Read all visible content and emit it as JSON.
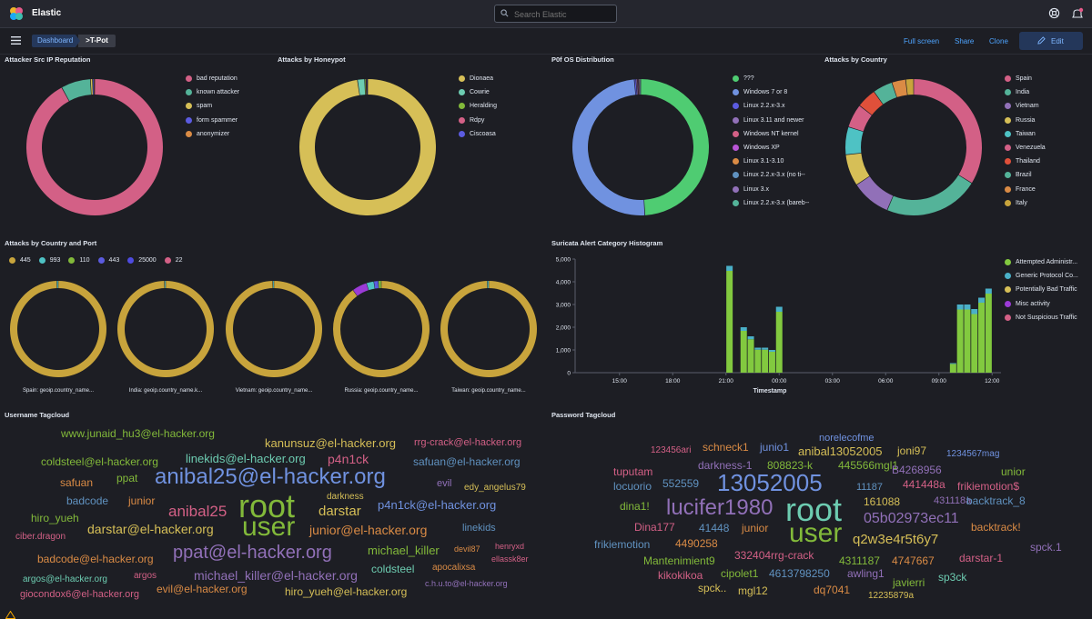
{
  "app": {
    "title": "Elastic"
  },
  "search": {
    "placeholder": "Search Elastic"
  },
  "breadcrumbs": [
    "Dashboard",
    ">T-Pot"
  ],
  "actions": {
    "full_screen": "Full screen",
    "share": "Share",
    "clone": "Clone",
    "edit": "Edit"
  },
  "icons": [
    "elastic-logo-icon",
    "search-icon",
    "help-icon",
    "news-icon",
    "menu-icon",
    "pencil-icon"
  ],
  "colors": {
    "pink": "#d36086",
    "green": "#54b399",
    "yellow": "#d6bf57",
    "purple": "#9170b8",
    "orange": "#da8b45",
    "mustard": "#c8a43c",
    "teal": "#6dccb1",
    "lime": "#82b93a",
    "indigo": "#5b5be0",
    "blue": "#6092c0",
    "lgreen": "#4fcc72",
    "lblue": "#7092e0"
  },
  "panels": {
    "reputation": {
      "title": "Attacker Src IP Reputation",
      "legend": [
        "bad reputation",
        "known attacker",
        "spam",
        "form spammer",
        "anonymizer"
      ]
    },
    "honeypot": {
      "title": "Attacks by Honeypot",
      "legend": [
        "Dionaea",
        "Cowrie",
        "Heralding",
        "Rdpy",
        "Ciscoasa"
      ]
    },
    "p0f": {
      "title": "P0f OS Distribution",
      "legend": [
        "???",
        "Windows 7 or 8",
        "Linux 2.2.x-3.x",
        "Linux 3.11 and newer",
        "Windows NT kernel",
        "Windows XP",
        "Linux 3.1-3.10",
        "Linux 2.2.x-3.x (no ti--",
        "Linux 3.x",
        "Linux 2.2.x-3.x (bareb--"
      ]
    },
    "country": {
      "title": "Attacks by Country",
      "legend": [
        "Spain",
        "India",
        "Vietnam",
        "Russia",
        "Taiwan",
        "Venezuela",
        "Thailand",
        "Brazil",
        "France",
        "Italy"
      ]
    },
    "country_port": {
      "title": "Attacks by Country and Port",
      "legend": [
        "445",
        "993",
        "110",
        "443",
        "25000",
        "22"
      ],
      "labels": [
        "Spain: geoip.country_name...",
        "India: geoip.country_name.k...",
        "Vietnam: geoip.country_name...",
        "Russia: geoip.country_name...",
        "Taiwan: geoip.country_name..."
      ]
    },
    "suricata": {
      "title": "Suricata Alert Category Histogram",
      "legend": [
        "Attempted Administr...",
        "Generic Protocol Co...",
        "Potentially Bad Traffic",
        "Misc activity",
        "Not Suspicious Traffic"
      ],
      "y_ticks": [
        "5,000",
        "4,000",
        "3,000",
        "2,000",
        "1,000",
        "0"
      ],
      "x_ticks": [
        "15:00",
        "18:00",
        "21:00",
        "00:00",
        "03:00",
        "06:00",
        "09:00",
        "12:00"
      ],
      "x_label": "Timestamp"
    },
    "username_cloud": {
      "title": "Username Tagcloud"
    },
    "password_cloud": {
      "title": "Password Tagcloud"
    }
  },
  "chart_data": [
    {
      "type": "pie",
      "title": "Attacker Src IP Reputation",
      "labels": [
        "bad reputation",
        "known attacker",
        "spam",
        "form spammer",
        "anonymizer"
      ],
      "values": [
        92,
        7,
        0.5,
        0.3,
        0.2
      ],
      "colors": [
        "#d36086",
        "#54b399",
        "#d6bf57",
        "#5b5be0",
        "#da8b45"
      ]
    },
    {
      "type": "pie",
      "title": "Attacks by Honeypot",
      "labels": [
        "Dionaea",
        "Cowrie",
        "Heralding",
        "Rdpy",
        "Ciscoasa"
      ],
      "values": [
        97.6,
        1.7,
        0.3,
        0.2,
        0.2
      ],
      "colors": [
        "#d6bf57",
        "#6dccb1",
        "#82b93a",
        "#d36086",
        "#5b5be0"
      ]
    },
    {
      "type": "pie",
      "title": "P0f OS Distribution",
      "labels": [
        "???",
        "Windows 7 or 8",
        "Linux 2.2.x-3.x",
        "Linux 3.11 and newer",
        "Windows NT kernel",
        "Windows XP",
        "Linux 3.1-3.10",
        "Linux 2.2.x-3.x (no ti--",
        "Linux 3.x",
        "Linux 2.2.x-3.x (bareb--"
      ],
      "values": [
        49,
        49.5,
        0.4,
        0.3,
        0.2,
        0.2,
        0.1,
        0.1,
        0.1,
        0.1
      ],
      "colors": [
        "#4fcc72",
        "#7092e0",
        "#5b5be0",
        "#9170b8",
        "#d36086",
        "#b855d6",
        "#da8b45",
        "#6092c0",
        "#9170b8",
        "#54b399"
      ]
    },
    {
      "type": "pie",
      "title": "Attacks by Country",
      "labels": [
        "Spain",
        "India",
        "Vietnam",
        "Russia",
        "Taiwan",
        "Venezuela",
        "Thailand",
        "Brazil",
        "France",
        "Italy"
      ],
      "values": [
        36,
        24,
        10,
        8,
        7,
        6,
        5,
        5,
        3.5,
        2
      ],
      "colors": [
        "#d36086",
        "#54b399",
        "#9170b8",
        "#d6bf57",
        "#4ec2c4",
        "#d36086",
        "#e0503a",
        "#54b399",
        "#da8b45",
        "#c8a43c"
      ]
    },
    {
      "type": "pie",
      "title": "Attacks by Country and Port",
      "series": [
        {
          "name": "Spain: geoip.country_name...",
          "values": [
            99.5,
            0.5
          ]
        },
        {
          "name": "India: geoip.country_name.k...",
          "values": [
            99.6,
            0.4
          ]
        },
        {
          "name": "Vietnam: geoip.country_name...",
          "values": [
            99.6,
            0.4
          ]
        },
        {
          "name": "Russia: geoip.country_name...",
          "values": [
            90,
            5,
            2.5,
            1.5,
            1
          ]
        },
        {
          "name": "Taiwan: geoip.country_name...",
          "values": [
            99.5,
            0.5
          ]
        }
      ],
      "series_colors": [
        [
          "#c8a43c",
          "#4ec2c4"
        ],
        [
          "#c8a43c",
          "#4ec2c4"
        ],
        [
          "#c8a43c",
          "#4ec2c4"
        ],
        [
          "#c8a43c",
          "#9b3bd6",
          "#4ec2c4",
          "#5b5be0",
          "#82b93a"
        ],
        [
          "#c8a43c",
          "#4ec2c4"
        ]
      ]
    },
    {
      "type": "bar",
      "title": "Suricata Alert Category Histogram",
      "xlabel": "Timestamp",
      "ylabel": "",
      "ylim": [
        0,
        5000
      ],
      "x_range_hours": [
        12.5,
        36.5
      ],
      "bars": [
        {
          "t": 21.2,
          "total": 4700
        },
        {
          "t": 22.0,
          "total": 2000
        },
        {
          "t": 22.4,
          "total": 1600
        },
        {
          "t": 22.8,
          "total": 1100
        },
        {
          "t": 23.2,
          "total": 1100
        },
        {
          "t": 23.6,
          "total": 1000
        },
        {
          "t": 24.0,
          "total": 2900
        },
        {
          "t": 33.8,
          "total": 420
        },
        {
          "t": 34.2,
          "total": 3000
        },
        {
          "t": 34.6,
          "total": 3000
        },
        {
          "t": 35.0,
          "total": 2800
        },
        {
          "t": 35.4,
          "total": 3300
        },
        {
          "t": 35.8,
          "total": 3700
        }
      ],
      "legend": [
        "Attempted Administr...",
        "Generic Protocol Co...",
        "Potentially Bad Traffic",
        "Misc activity",
        "Not Suspicious Traffic"
      ],
      "colors": [
        "#82c93f",
        "#4ab0c8",
        "#d6bf57",
        "#9b3bd6",
        "#d36086"
      ]
    }
  ],
  "username_cloud": [
    {
      "t": "www.junaid_hu3@el-hacker.org",
      "c": "#82b93a",
      "s": 12
    },
    {
      "t": "kanunsuz@el-hacker.org",
      "c": "#d6bf57",
      "s": 13
    },
    {
      "t": "rrg-crack@el-hacker.org",
      "c": "#d36086",
      "s": 11
    },
    {
      "t": "coldsteel@el-hacker.org",
      "c": "#82b93a",
      "s": 12
    },
    {
      "t": "linekids@el-hacker.org",
      "c": "#6dccb1",
      "s": 13
    },
    {
      "t": "p4n1ck",
      "c": "#d36086",
      "s": 14
    },
    {
      "t": "safuan@el-hacker.org",
      "c": "#6092c0",
      "s": 12
    },
    {
      "t": "safuan",
      "c": "#da8b45",
      "s": 12
    },
    {
      "t": "ppat",
      "c": "#82b93a",
      "s": 12
    },
    {
      "t": "anibal25@el-hacker.org",
      "c": "#7092e0",
      "s": 24
    },
    {
      "t": "evil",
      "c": "#9170b8",
      "s": 11
    },
    {
      "t": "edy_angelus79",
      "c": "#d6bf57",
      "s": 10
    },
    {
      "t": "badcode",
      "c": "#6092c0",
      "s": 12
    },
    {
      "t": "junior",
      "c": "#da8b45",
      "s": 12
    },
    {
      "t": "darkness",
      "c": "#d6bf57",
      "s": 10
    },
    {
      "t": "p4n1ck@el-hacker.org",
      "c": "#7092e0",
      "s": 13
    },
    {
      "t": "anibal25",
      "c": "#d36086",
      "s": 17
    },
    {
      "t": "root",
      "c": "#82b93a",
      "s": 36
    },
    {
      "t": "darstar",
      "c": "#d6bf57",
      "s": 15
    },
    {
      "t": "hiro_yueh",
      "c": "#82b93a",
      "s": 12
    },
    {
      "t": "darstar@el-hacker.org",
      "c": "#d6bf57",
      "s": 14
    },
    {
      "t": "user",
      "c": "#82b93a",
      "s": 30
    },
    {
      "t": "junior@el-hacker.org",
      "c": "#da8b45",
      "s": 14
    },
    {
      "t": "linekids",
      "c": "#6092c0",
      "s": 11
    },
    {
      "t": "ciber.dragon",
      "c": "#d36086",
      "s": 10
    },
    {
      "t": "ppat@el-hacker.org",
      "c": "#9170b8",
      "s": 20
    },
    {
      "t": "michael_killer",
      "c": "#82b93a",
      "s": 13
    },
    {
      "t": "devil87",
      "c": "#da8b45",
      "s": 9
    },
    {
      "t": "henryxd",
      "c": "#d36086",
      "s": 9
    },
    {
      "t": "badcode@el-hacker.org",
      "c": "#da8b45",
      "s": 12
    },
    {
      "t": "ellassk8er",
      "c": "#d36086",
      "s": 9
    },
    {
      "t": "coldsteel",
      "c": "#6dccb1",
      "s": 12
    },
    {
      "t": "argos@el-hacker.org",
      "c": "#6dccb1",
      "s": 10
    },
    {
      "t": "argos",
      "c": "#d36086",
      "s": 10
    },
    {
      "t": "michael_killer@el-hacker.org",
      "c": "#9170b8",
      "s": 14
    },
    {
      "t": "apocalixsa",
      "c": "#da8b45",
      "s": 10
    },
    {
      "t": "evil@el-hacker.org",
      "c": "#da8b45",
      "s": 12
    },
    {
      "t": "c.h.u.to@el-hacker.org",
      "c": "#9170b8",
      "s": 9
    },
    {
      "t": "giocondox6@el-hacker.org",
      "c": "#d36086",
      "s": 11
    },
    {
      "t": "hiro_yueh@el-hacker.org",
      "c": "#d6bf57",
      "s": 12
    }
  ],
  "password_cloud": [
    {
      "t": "norelecofme",
      "c": "#7092e0",
      "s": 11
    },
    {
      "t": "123456ari",
      "c": "#d36086",
      "s": 10
    },
    {
      "t": "schneck1",
      "c": "#da8b45",
      "s": 12
    },
    {
      "t": "junio1",
      "c": "#7092e0",
      "s": 12
    },
    {
      "t": "anibal13052005",
      "c": "#d6bf57",
      "s": 13
    },
    {
      "t": "joni97",
      "c": "#d6bf57",
      "s": 12
    },
    {
      "t": "1234567mag",
      "c": "#7092e0",
      "s": 10
    },
    {
      "t": "tuputam",
      "c": "#d36086",
      "s": 12
    },
    {
      "t": "darkness-1",
      "c": "#9170b8",
      "s": 12
    },
    {
      "t": "808823-k",
      "c": "#82b93a",
      "s": 12
    },
    {
      "t": "445566mgl1",
      "c": "#82b93a",
      "s": 12
    },
    {
      "t": "unior",
      "c": "#82b93a",
      "s": 12
    },
    {
      "t": "B4268956",
      "c": "#9170b8",
      "s": 12
    },
    {
      "t": "locuorio",
      "c": "#6092c0",
      "s": 12
    },
    {
      "t": "552559",
      "c": "#6092c0",
      "s": 12
    },
    {
      "t": "13052005",
      "c": "#7092e0",
      "s": 26
    },
    {
      "t": "11187",
      "c": "#6092c0",
      "s": 11
    },
    {
      "t": "441448a",
      "c": "#d36086",
      "s": 12
    },
    {
      "t": "frikiemotion$",
      "c": "#d36086",
      "s": 12
    },
    {
      "t": "dina1!",
      "c": "#82b93a",
      "s": 12
    },
    {
      "t": "lucifer1980",
      "c": "#9170b8",
      "s": 24
    },
    {
      "t": "root",
      "c": "#6dccb1",
      "s": 36
    },
    {
      "t": "161088",
      "c": "#d6bf57",
      "s": 12
    },
    {
      "t": "431118a",
      "c": "#9170b8",
      "s": 11
    },
    {
      "t": "backtrack_8",
      "c": "#6092c0",
      "s": 12
    },
    {
      "t": "Dina177",
      "c": "#d36086",
      "s": 12
    },
    {
      "t": "41448",
      "c": "#6092c0",
      "s": 12
    },
    {
      "t": "junior",
      "c": "#da8b45",
      "s": 12
    },
    {
      "t": "user",
      "c": "#82b93a",
      "s": 30
    },
    {
      "t": "05b02973ec11",
      "c": "#9170b8",
      "s": 16
    },
    {
      "t": "backtrack!",
      "c": "#da8b45",
      "s": 12
    },
    {
      "t": "frikiemotion",
      "c": "#6092c0",
      "s": 12
    },
    {
      "t": "4490258",
      "c": "#da8b45",
      "s": 12
    },
    {
      "t": "q2w3e4r5t6y7",
      "c": "#d6bf57",
      "s": 15
    },
    {
      "t": "spck.1",
      "c": "#9170b8",
      "s": 12
    },
    {
      "t": "332404rrg-crack",
      "c": "#d36086",
      "s": 12
    },
    {
      "t": "Mantenimient9",
      "c": "#82b93a",
      "s": 12
    },
    {
      "t": "4311187",
      "c": "#82b93a",
      "s": 12
    },
    {
      "t": "4747667",
      "c": "#da8b45",
      "s": 12
    },
    {
      "t": "darstar-1",
      "c": "#d36086",
      "s": 12
    },
    {
      "t": "kikokikoa",
      "c": "#d36086",
      "s": 12
    },
    {
      "t": "cipolet1",
      "c": "#82b93a",
      "s": 12
    },
    {
      "t": "4613798250",
      "c": "#6092c0",
      "s": 12
    },
    {
      "t": "awling1",
      "c": "#9170b8",
      "s": 12
    },
    {
      "t": "sp3ck",
      "c": "#6dccb1",
      "s": 12
    },
    {
      "t": "javierri",
      "c": "#82b93a",
      "s": 12
    },
    {
      "t": "spck..",
      "c": "#d6bf57",
      "s": 12
    },
    {
      "t": "mgl12",
      "c": "#d6bf57",
      "s": 12
    },
    {
      "t": "dq7041",
      "c": "#da8b45",
      "s": 12
    },
    {
      "t": "12235879a",
      "c": "#d6bf57",
      "s": 10
    }
  ]
}
